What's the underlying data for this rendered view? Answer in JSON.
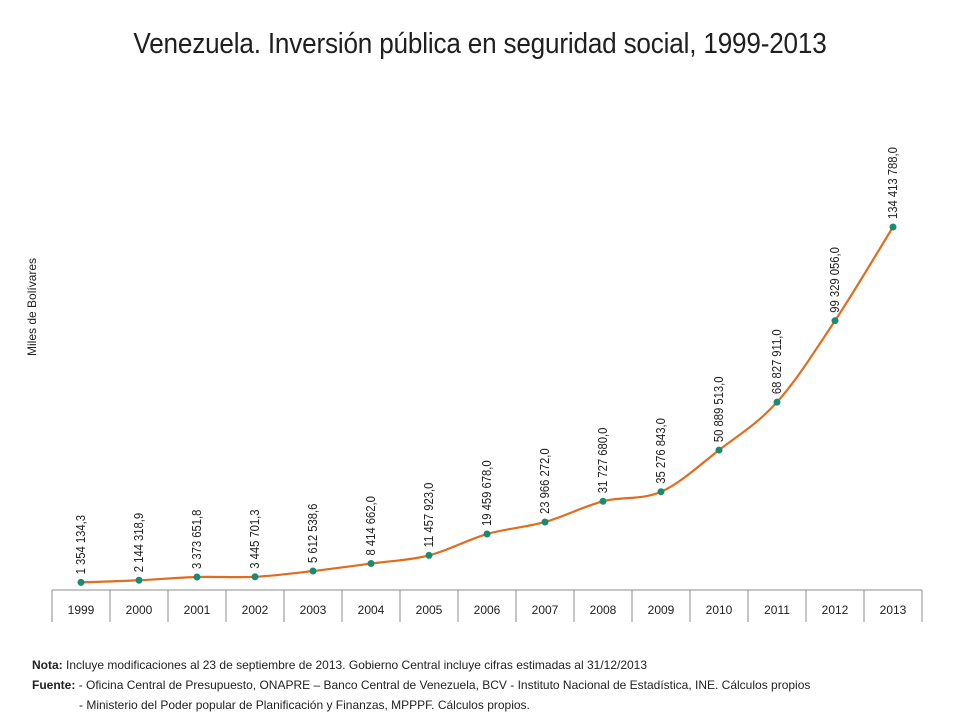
{
  "title": "Venezuela. Inversión pública en seguridad social, 1999-2013",
  "chart_data": {
    "type": "line",
    "title": "Venezuela. Inversión pública en seguridad social, 1999-2013",
    "ylabel": "Miles de Bolívares",
    "xlabel": "",
    "categories": [
      "1999",
      "2000",
      "2001",
      "2002",
      "2003",
      "2004",
      "2005",
      "2006",
      "2007",
      "2008",
      "2009",
      "2010",
      "2011",
      "2012",
      "2013"
    ],
    "values": [
      1354134.3,
      2144318.9,
      3373651.8,
      3445701.3,
      5612538.6,
      8414662.0,
      11457923.0,
      19459678.0,
      23966272.0,
      31727680.0,
      35276843.0,
      50889513.0,
      68827911.0,
      99329056.0,
      134413788.0
    ],
    "data_labels": [
      "1 354 134,3",
      "2 144 318,9",
      "3 373 651,8",
      "3 445 701,3",
      "5 612 538,6",
      "8 414 662,0",
      "11 457 923,0",
      "19 459 678,0",
      "23 966 272,0",
      "31 727 680,0",
      "35 276 843,0",
      "50 889 513,0",
      "68 827 911,0",
      "99 329 056,0",
      "134 413 788,0"
    ],
    "ylim": [
      0,
      134413788.0
    ],
    "grid": false,
    "legend": "none",
    "line_color": "#e06c1e",
    "marker_color": "#1a8a73",
    "smooth": true
  },
  "notes": {
    "nota_label": "Nota:",
    "nota_text": "Incluye modificaciones al 23 de septiembre de 2013. Gobierno Central incluye cifras estimadas al 31/12/2013",
    "fuente_label": "Fuente:",
    "fuente_line1": "- Oficina Central de Presupuesto, ONAPRE – Banco Central de Venezuela, BCV  - Instituto Nacional de Estadística, INE. Cálculos propios",
    "fuente_line2": "- Ministerio del Poder popular de Planificación y Finanzas, MPPPF. Cálculos propios."
  }
}
